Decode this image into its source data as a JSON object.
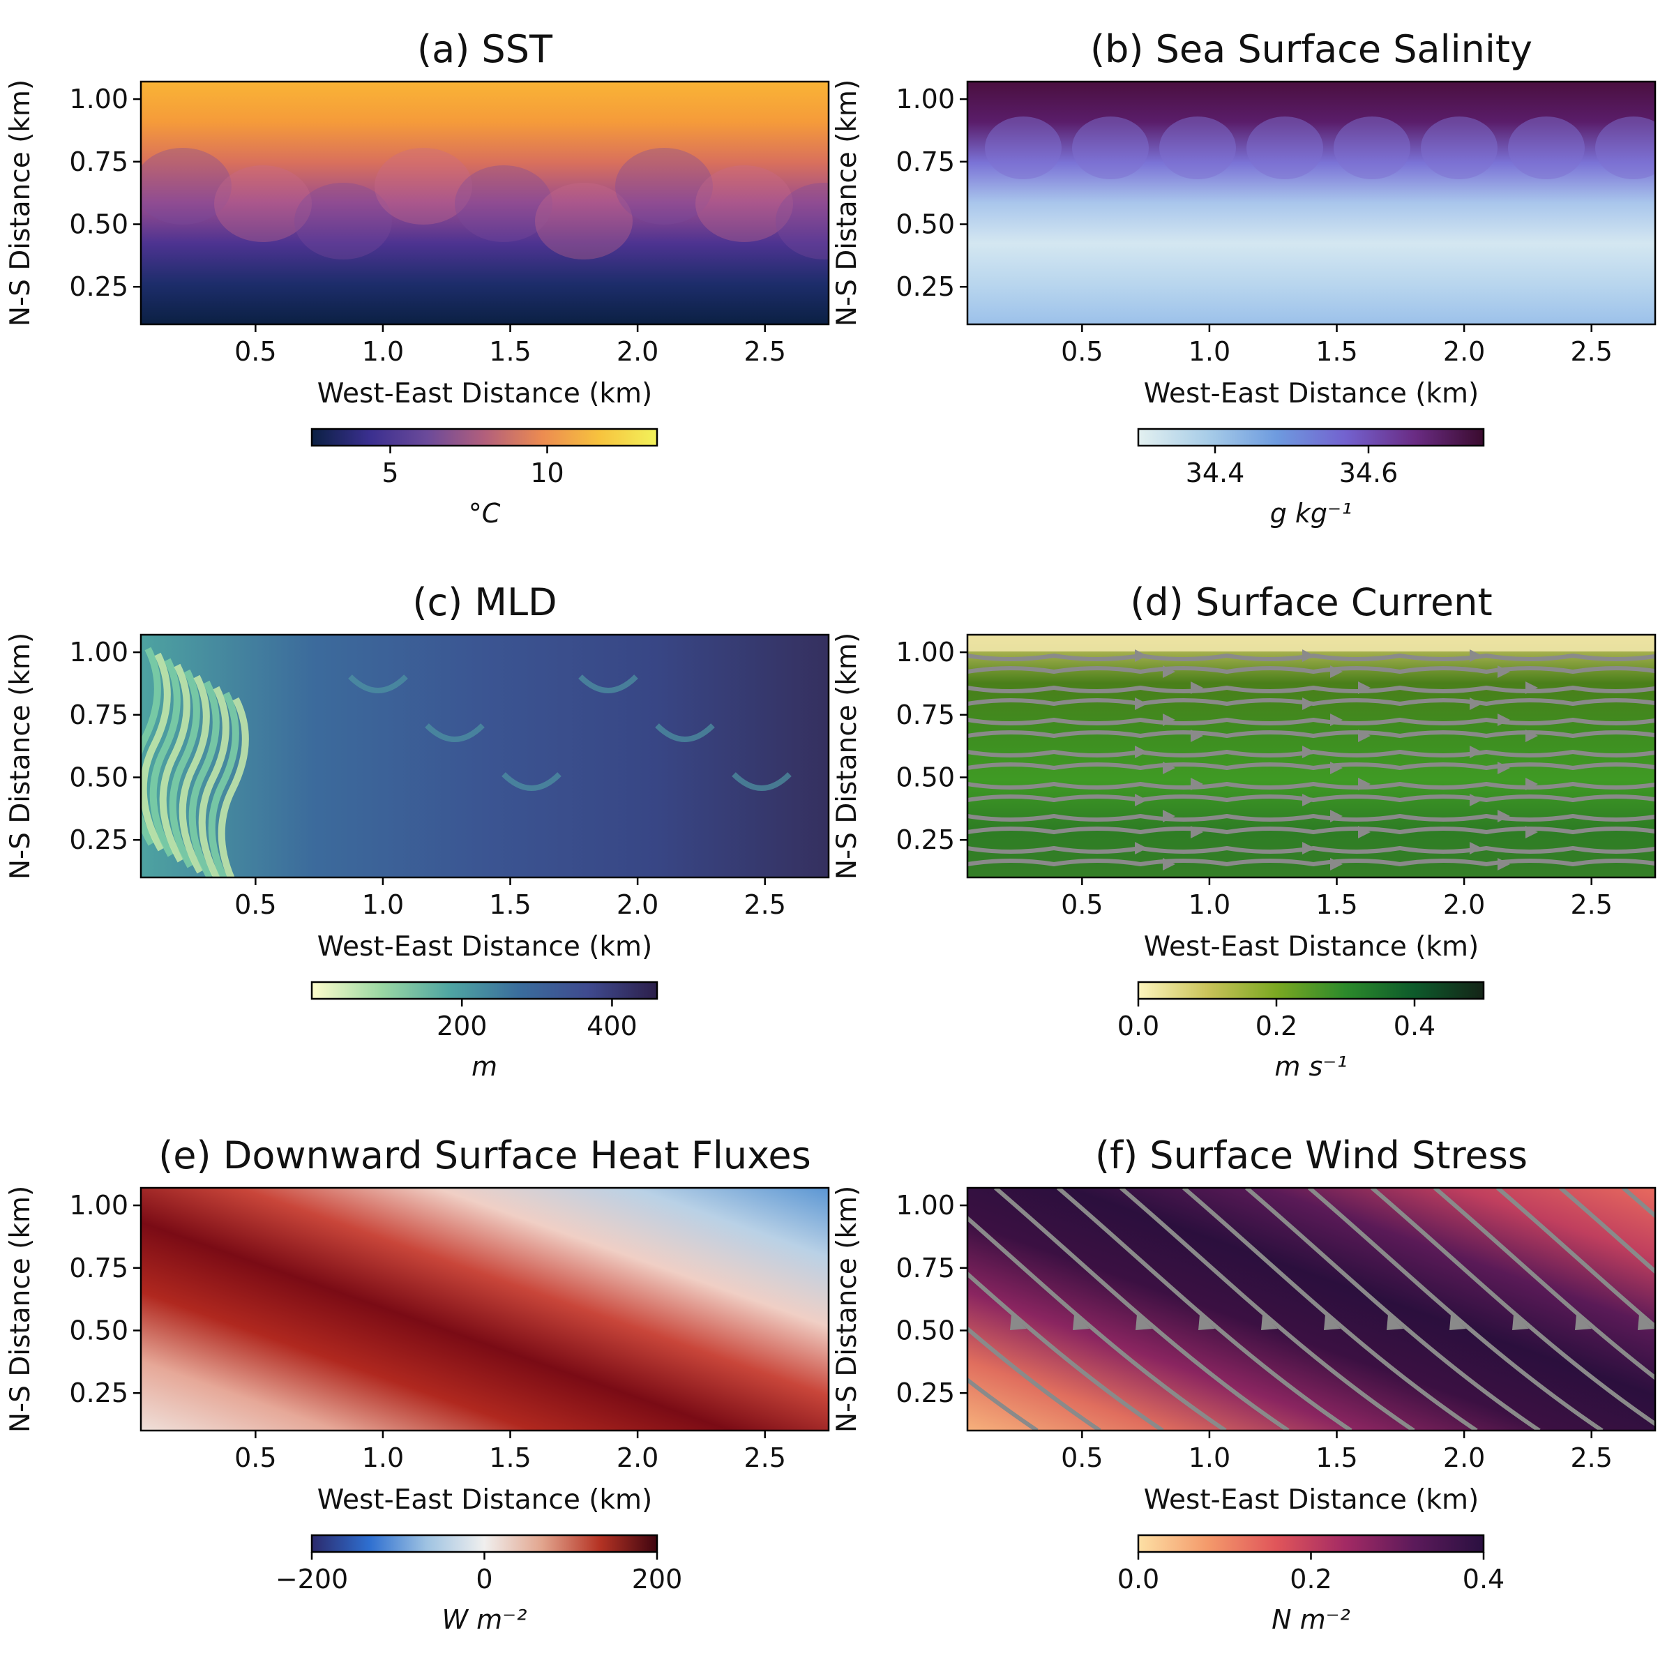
{
  "figure": {
    "common": {
      "xlabel": "West-East Distance (km)",
      "ylabel": "N-S Distance (km)",
      "xticks": [
        "0.5",
        "1.0",
        "1.5",
        "2.0",
        "2.5"
      ],
      "yticks": [
        "1.00",
        "0.75",
        "0.50",
        "0.25"
      ]
    }
  },
  "chart_data": [
    {
      "type": "heatmap",
      "title": "(a) SST",
      "xlabel": "West-East Distance (km)",
      "ylabel": "N-S Distance (km)",
      "xlim": [
        0.05,
        2.75
      ],
      "ylim": [
        0.1,
        1.07
      ],
      "xticks": [
        0.5,
        1.0,
        1.5,
        2.0,
        2.5
      ],
      "yticks": [
        0.25,
        0.5,
        0.75,
        1.0
      ],
      "colorbar": {
        "label": "°C",
        "range": [
          2.5,
          13.5
        ],
        "ticks": [
          5,
          10
        ],
        "tick_labels": [
          "5",
          "10"
        ],
        "colors": [
          "#0b2043",
          "#3a2f8f",
          "#6b4a9a",
          "#b25f7c",
          "#ec8b51",
          "#f7c33e",
          "#f2f25b"
        ]
      },
      "field_colors": {
        "north": "#f9b13a",
        "mid": "#c2678c",
        "south": "#0b2043"
      }
    },
    {
      "type": "heatmap",
      "title": "(b) Sea Surface Salinity",
      "xlabel": "West-East Distance (km)",
      "ylabel": "N-S Distance (km)",
      "xlim": [
        0.05,
        2.75
      ],
      "ylim": [
        0.1,
        1.07
      ],
      "xticks": [
        0.5,
        1.0,
        1.5,
        2.0,
        2.5
      ],
      "yticks": [
        0.25,
        0.5,
        0.75,
        1.0
      ],
      "colorbar": {
        "label": "g kg⁻¹",
        "range": [
          34.3,
          34.75
        ],
        "ticks": [
          34.4,
          34.6
        ],
        "tick_labels": [
          "34.4",
          "34.6"
        ],
        "colors": [
          "#e3f0f0",
          "#a8cde8",
          "#6e9bdf",
          "#7362cf",
          "#6a2c84",
          "#3a0b2e"
        ]
      },
      "field_colors": {
        "north": "#4c1243",
        "mid": "#7b7ad6",
        "south": "#b9d6ee"
      }
    },
    {
      "type": "heatmap",
      "title": "(c) MLD",
      "xlabel": "West-East Distance (km)",
      "ylabel": "N-S Distance (km)",
      "xlim": [
        0.05,
        2.75
      ],
      "ylim": [
        0.1,
        1.07
      ],
      "xticks": [
        0.5,
        1.0,
        1.5,
        2.0,
        2.5
      ],
      "yticks": [
        0.25,
        0.5,
        0.75,
        1.0
      ],
      "colorbar": {
        "label": "m",
        "range": [
          0,
          460
        ],
        "ticks": [
          200,
          400
        ],
        "tick_labels": [
          "200",
          "400"
        ],
        "colors": [
          "#fdfccc",
          "#9bd8a3",
          "#4fa5a2",
          "#3a6d9c",
          "#3f4a8f",
          "#2c1f4a"
        ]
      },
      "field_colors": {
        "west": "#3f9ea0",
        "center": "#3b5e96",
        "east": "#35305f"
      }
    },
    {
      "type": "heatmap",
      "title": "(d) Surface Current",
      "xlabel": "West-East Distance (km)",
      "ylabel": "N-S Distance (km)",
      "xlim": [
        0.05,
        2.75
      ],
      "ylim": [
        0.1,
        1.07
      ],
      "xticks": [
        0.5,
        1.0,
        1.5,
        2.0,
        2.5
      ],
      "yticks": [
        0.25,
        0.5,
        0.75,
        1.0
      ],
      "colorbar": {
        "label": "m s⁻¹",
        "range": [
          0,
          0.5
        ],
        "ticks": [
          0.0,
          0.2,
          0.4
        ],
        "tick_labels": [
          "0.0",
          "0.2",
          "0.4"
        ],
        "colors": [
          "#fdf5bd",
          "#c9c35a",
          "#7ba822",
          "#2c8a2b",
          "#0d5a2b",
          "#142417"
        ]
      },
      "field_colors": {
        "north": "#3a6a1c",
        "mid": "#3f8f1f",
        "south": "#2e7d24"
      },
      "streamlines": "gray, eastward flow with small meanders"
    },
    {
      "type": "heatmap",
      "title": "(e) Downward Surface Heat Fluxes",
      "xlabel": "West-East Distance (km)",
      "ylabel": "N-S Distance (km)",
      "xlim": [
        0.05,
        2.75
      ],
      "ylim": [
        0.1,
        1.07
      ],
      "xticks": [
        0.5,
        1.0,
        1.5,
        2.0,
        2.5
      ],
      "yticks": [
        0.25,
        0.5,
        0.75,
        1.0
      ],
      "colorbar": {
        "label": "W m⁻²",
        "range": [
          -200,
          200
        ],
        "ticks": [
          -200,
          0,
          200
        ],
        "tick_labels": [
          "−200",
          "0",
          "200"
        ],
        "colors": [
          "#2c2a6c",
          "#2e6fd0",
          "#9fc3e2",
          "#f0efee",
          "#e2a58e",
          "#b53324",
          "#3f0510"
        ]
      },
      "field_colors": {
        "southwest": "#f0dad3",
        "band": "#7e0d14",
        "northeast": "#6b9fd4"
      }
    },
    {
      "type": "heatmap",
      "title": "(f) Surface Wind Stress",
      "xlabel": "West-East Distance (km)",
      "ylabel": "N-S Distance (km)",
      "xlim": [
        0.05,
        2.75
      ],
      "ylim": [
        0.1,
        1.07
      ],
      "xticks": [
        0.5,
        1.0,
        1.5,
        2.0,
        2.5
      ],
      "yticks": [
        0.25,
        0.5,
        0.75,
        1.0
      ],
      "colorbar": {
        "label": "N m⁻²",
        "range": [
          0,
          0.4
        ],
        "ticks": [
          0.0,
          0.2,
          0.4
        ],
        "tick_labels": [
          "0.0",
          "0.2",
          "0.4"
        ],
        "colors": [
          "#fde0a5",
          "#f49a6b",
          "#e0555a",
          "#a32a64",
          "#5b1a5a",
          "#2a1040"
        ]
      },
      "field_colors": {
        "southwest": "#f2a06e",
        "center": "#3a1040",
        "northeast": "#d0455d"
      },
      "streamlines": "gray, flowing from northwest to southeast"
    }
  ]
}
